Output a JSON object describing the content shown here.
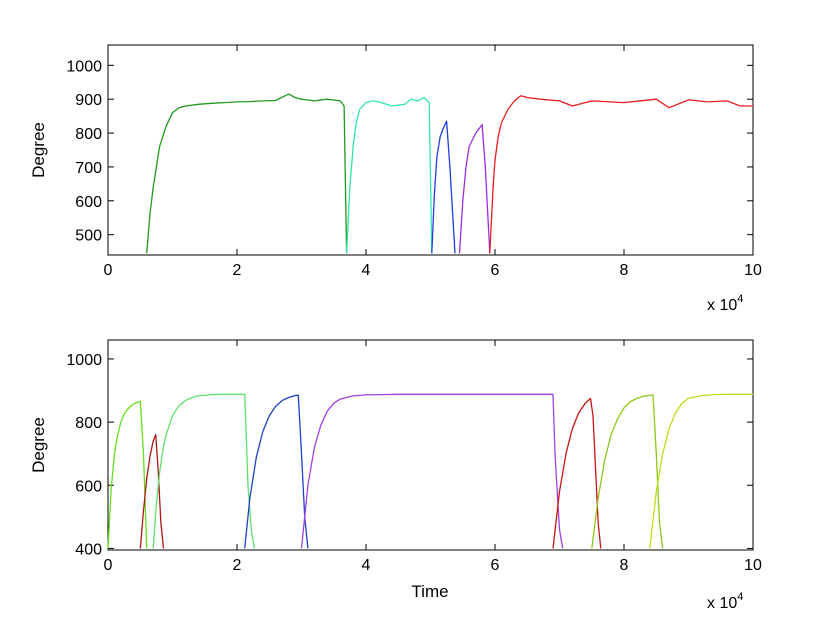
{
  "chart_data": [
    {
      "type": "line",
      "title": "",
      "xlabel": "",
      "ylabel": "Degree",
      "x_multiplier_label": "x 10",
      "x_multiplier_exponent": "4",
      "xlim": [
        0,
        10
      ],
      "ylim": [
        440,
        1060
      ],
      "xticks": [
        "0",
        "2",
        "4",
        "6",
        "8",
        "10"
      ],
      "xtick_values": [
        0,
        2,
        4,
        6,
        8,
        10
      ],
      "yticks": [
        "500",
        "600",
        "700",
        "800",
        "900",
        "1000"
      ],
      "ytick_values": [
        500,
        600,
        700,
        800,
        900,
        1000
      ],
      "grid": false,
      "legend": "none",
      "series": [
        {
          "color": "#1f9a1f",
          "x": [
            0.6,
            0.65,
            0.7,
            0.75,
            0.8,
            0.9,
            1.0,
            1.1,
            1.2,
            1.4,
            1.6,
            1.8,
            2.0,
            2.2,
            2.4,
            2.6,
            2.8,
            2.9,
            3.0,
            3.2,
            3.4,
            3.6,
            3.66,
            3.7
          ],
          "y": [
            445,
            560,
            640,
            700,
            760,
            820,
            860,
            875,
            880,
            885,
            888,
            890,
            892,
            893,
            895,
            896,
            915,
            905,
            900,
            895,
            900,
            895,
            880,
            445
          ]
        },
        {
          "color": "#33e6a6",
          "x": [
            3.7,
            3.75,
            3.8,
            3.85,
            3.9,
            4.0,
            4.1,
            4.2,
            4.4,
            4.6,
            4.7,
            4.8,
            4.9,
            4.98,
            5.02
          ],
          "y": [
            445,
            640,
            760,
            830,
            870,
            890,
            895,
            892,
            880,
            885,
            900,
            895,
            905,
            890,
            445
          ]
        },
        {
          "color": "#1f3fe0",
          "x": [
            5.02,
            5.06,
            5.1,
            5.15,
            5.2,
            5.25,
            5.3,
            5.38
          ],
          "y": [
            445,
            620,
            730,
            790,
            815,
            835,
            700,
            445
          ]
        },
        {
          "color": "#9a2fe0",
          "x": [
            5.45,
            5.5,
            5.55,
            5.6,
            5.7,
            5.8,
            5.85,
            5.92
          ],
          "y": [
            445,
            600,
            700,
            760,
            800,
            825,
            700,
            445
          ]
        },
        {
          "color": "#e61e1e",
          "x": [
            5.92,
            5.97,
            6.0,
            6.05,
            6.1,
            6.2,
            6.3,
            6.4,
            6.5,
            6.7,
            7.0,
            7.2,
            7.5,
            8.0,
            8.5,
            8.7,
            9.0,
            9.3,
            9.6,
            9.8,
            10.0
          ],
          "y": [
            445,
            640,
            720,
            790,
            830,
            870,
            895,
            910,
            905,
            900,
            895,
            880,
            895,
            890,
            900,
            875,
            898,
            892,
            895,
            880,
            880
          ]
        }
      ]
    },
    {
      "type": "line",
      "title": "",
      "xlabel": "Time",
      "ylabel": "Degree",
      "x_multiplier_label": "x 10",
      "x_multiplier_exponent": "4",
      "xlim": [
        0,
        10
      ],
      "ylim": [
        395,
        1060
      ],
      "xticks": [
        "0",
        "2",
        "4",
        "6",
        "8",
        "10"
      ],
      "xtick_values": [
        0,
        2,
        4,
        6,
        8,
        10
      ],
      "yticks": [
        "400",
        "600",
        "800",
        "1000"
      ],
      "ytick_values": [
        400,
        600,
        800,
        1000
      ],
      "grid": false,
      "legend": "none",
      "series": [
        {
          "color": "#66e01a",
          "x": [
            0.0,
            0.05,
            0.1,
            0.15,
            0.2,
            0.25,
            0.3,
            0.35,
            0.4,
            0.45,
            0.5,
            0.55,
            0.6
          ],
          "y": [
            400,
            590,
            700,
            760,
            800,
            825,
            840,
            850,
            858,
            862,
            866,
            700,
            400
          ]
        },
        {
          "color": "#b01414",
          "x": [
            0.5,
            0.55,
            0.6,
            0.65,
            0.7,
            0.74,
            0.78,
            0.82,
            0.86
          ],
          "y": [
            400,
            520,
            620,
            690,
            740,
            760,
            640,
            480,
            400
          ]
        },
        {
          "color": "#5fe06a",
          "x": [
            0.7,
            0.75,
            0.8,
            0.85,
            0.9,
            1.0,
            1.1,
            1.2,
            1.3,
            1.4,
            1.6,
            1.8,
            2.0,
            2.12,
            2.17,
            2.22,
            2.27
          ],
          "y": [
            400,
            540,
            640,
            710,
            760,
            820,
            852,
            868,
            878,
            883,
            887,
            888,
            888,
            888,
            600,
            460,
            400
          ]
        },
        {
          "color": "#1f3fc8",
          "x": [
            2.12,
            2.2,
            2.3,
            2.4,
            2.5,
            2.6,
            2.7,
            2.8,
            2.92,
            2.95,
            3.0,
            3.05,
            3.1
          ],
          "y": [
            400,
            560,
            690,
            770,
            820,
            850,
            868,
            878,
            885,
            885,
            700,
            500,
            400
          ]
        },
        {
          "color": "#a040e0",
          "x": [
            3.0,
            3.1,
            3.2,
            3.3,
            3.4,
            3.5,
            3.6,
            3.8,
            4.0,
            4.5,
            5.0,
            6.0,
            6.9,
            6.93,
            6.97,
            7.0,
            7.05
          ],
          "y": [
            400,
            600,
            720,
            790,
            835,
            860,
            873,
            883,
            886,
            888,
            888,
            888,
            888,
            700,
            560,
            460,
            400
          ]
        },
        {
          "color": "#c81414",
          "x": [
            6.9,
            7.0,
            7.1,
            7.2,
            7.3,
            7.4,
            7.48,
            7.52,
            7.56,
            7.6,
            7.64
          ],
          "y": [
            400,
            580,
            700,
            780,
            830,
            860,
            875,
            820,
            650,
            480,
            400
          ]
        },
        {
          "color": "#8fc81a",
          "x": [
            7.5,
            7.6,
            7.7,
            7.8,
            7.9,
            8.0,
            8.1,
            8.2,
            8.3,
            8.45,
            8.5,
            8.55,
            8.6
          ],
          "y": [
            400,
            560,
            680,
            760,
            810,
            845,
            865,
            875,
            882,
            886,
            700,
            480,
            400
          ]
        },
        {
          "color": "#b8e01a",
          "x": [
            8.4,
            8.5,
            8.6,
            8.7,
            8.8,
            8.9,
            9.0,
            9.2,
            9.4,
            9.6,
            9.8,
            10.0
          ],
          "y": [
            400,
            580,
            700,
            780,
            830,
            860,
            875,
            884,
            887,
            888,
            888,
            888
          ]
        }
      ]
    }
  ]
}
